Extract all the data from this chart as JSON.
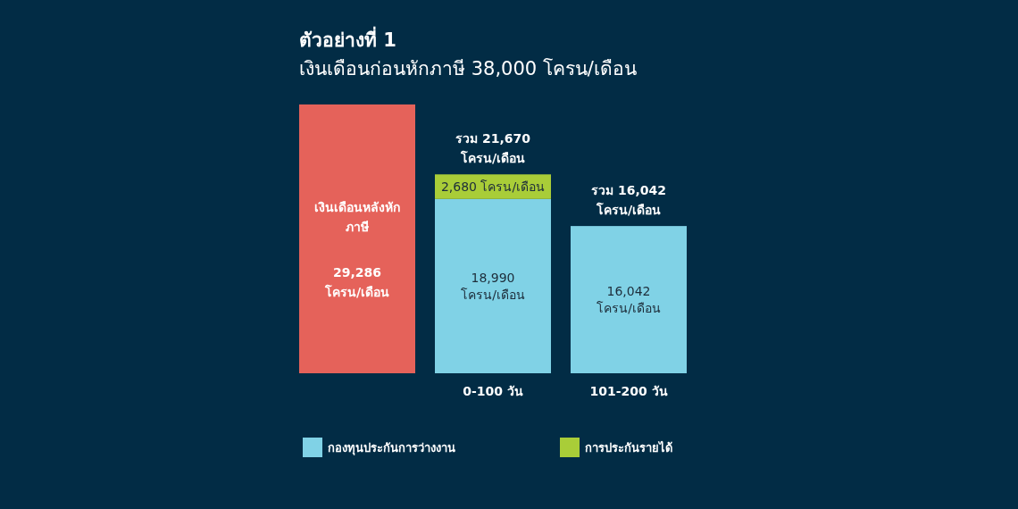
{
  "chart_data": {
    "type": "bar",
    "stacked": true,
    "title": "ตัวอย่างที่ 1",
    "subtitle": "เงินเดือนก่อนหักภาษี 38,000 โครน/เดือน",
    "categories": [
      null,
      "0-100 วัน",
      "101-200 วัน"
    ],
    "legend": "bottom",
    "series": [
      {
        "name": "เงินเดือนหลังหักภาษี",
        "color": "#e5625a",
        "values": [
          29286,
          null,
          null
        ],
        "value_labels": [
          "29,286 โครน/เดือน",
          null,
          null
        ]
      },
      {
        "name": "กองทุนประกันการว่างงาน",
        "color": "#80d2e6",
        "values": [
          null,
          18990,
          16042
        ],
        "value_labels": [
          null,
          "18,990 โครน/เดือน",
          "16,042 โครน/เดือน"
        ]
      },
      {
        "name": "การประกันรายได้",
        "color": "#a9cd38",
        "values": [
          null,
          2680,
          null
        ],
        "value_labels": [
          null,
          "2,680 โครน/เดือน",
          null
        ]
      }
    ],
    "totals": [
      null,
      "รวม 21,670 โครน/เดือน",
      "รวม 16,042 โครน/เดือน"
    ]
  }
}
